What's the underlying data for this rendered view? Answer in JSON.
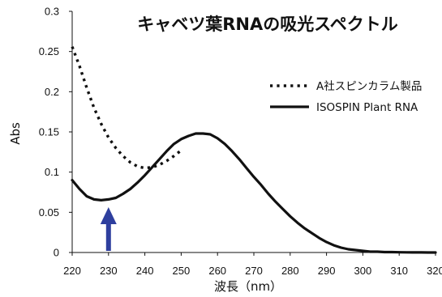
{
  "chart_data": {
    "type": "line",
    "title": "キャベツ葉RNAの吸光スペクトル",
    "xlabel": "波長（nm）",
    "ylabel": "Abs",
    "xlim": [
      220,
      320
    ],
    "ylim": [
      0,
      0.3
    ],
    "x_ticks": [
      "220",
      "230",
      "240",
      "250",
      "260",
      "270",
      "280",
      "290",
      "300",
      "310",
      "320"
    ],
    "y_ticks": [
      "0",
      "0.05",
      "0.1",
      "0.15",
      "0.2",
      "0.25",
      "0.3"
    ],
    "grid": false,
    "legend_position": "top-right",
    "series": [
      {
        "name": "A社スピンカラム製品",
        "style": "dotted",
        "color": "#111111",
        "x": [
          220,
          222,
          224,
          226,
          228,
          230,
          232,
          234,
          236,
          238,
          240,
          242,
          244,
          246,
          248,
          250
        ],
        "y": [
          0.256,
          0.232,
          0.205,
          0.18,
          0.16,
          0.143,
          0.13,
          0.12,
          0.112,
          0.107,
          0.105,
          0.106,
          0.109,
          0.114,
          0.12,
          0.127
        ]
      },
      {
        "name": "ISOSPIN Plant RNA",
        "style": "solid",
        "color": "#111111",
        "x": [
          220,
          222,
          224,
          226,
          228,
          230,
          232,
          234,
          236,
          238,
          240,
          242,
          244,
          246,
          248,
          250,
          252,
          254,
          256,
          258,
          260,
          262,
          264,
          266,
          268,
          270,
          272,
          274,
          276,
          278,
          280,
          282,
          284,
          286,
          288,
          290,
          292,
          294,
          296,
          298,
          300,
          302,
          304,
          306,
          308,
          310,
          312,
          314,
          316,
          318,
          320
        ],
        "y": [
          0.09,
          0.079,
          0.07,
          0.066,
          0.065,
          0.066,
          0.068,
          0.073,
          0.079,
          0.087,
          0.096,
          0.106,
          0.116,
          0.126,
          0.135,
          0.141,
          0.145,
          0.148,
          0.148,
          0.147,
          0.142,
          0.135,
          0.126,
          0.116,
          0.105,
          0.094,
          0.084,
          0.073,
          0.063,
          0.054,
          0.045,
          0.037,
          0.03,
          0.024,
          0.018,
          0.013,
          0.009,
          0.006,
          0.004,
          0.003,
          0.002,
          0.001,
          0.001,
          0.0005,
          0.0005,
          0.0003,
          0.0002,
          0.0001,
          0.0001,
          0.0,
          0.0
        ]
      }
    ],
    "annotation": {
      "type": "arrow",
      "x": 230,
      "color": "#2e3f9e"
    }
  }
}
